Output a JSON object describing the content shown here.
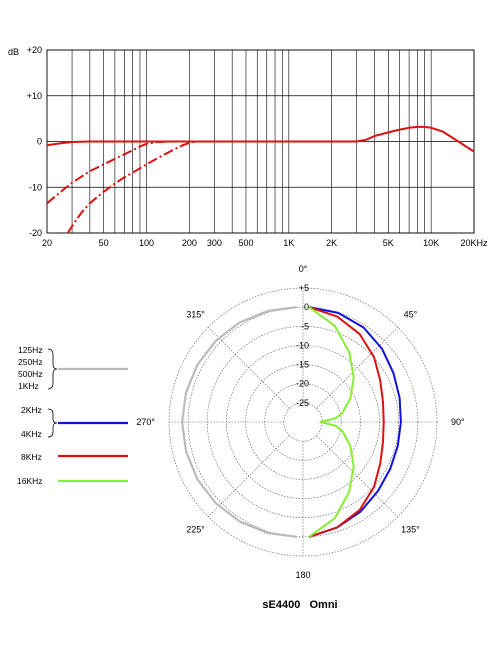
{
  "chart_data": [
    {
      "type": "line",
      "title": "",
      "xlabel": "",
      "ylabel": "dB",
      "xscale": "log",
      "xlim": [
        20,
        20000
      ],
      "ylim": [
        -20,
        20
      ],
      "grid": true,
      "x_tick_labels": [
        "20",
        "50",
        "100",
        "200",
        "300",
        "500",
        "1K",
        "2K",
        "5K",
        "10K",
        "20KHz"
      ],
      "x_tick_values": [
        20,
        50,
        100,
        200,
        300,
        500,
        1000,
        2000,
        5000,
        10000,
        20000
      ],
      "y_tick_labels": [
        "+20",
        "+10",
        "0",
        "-10",
        "-20"
      ],
      "y_tick_values": [
        20,
        10,
        0,
        -10,
        -20
      ],
      "series": [
        {
          "style": "solid",
          "color": "#dd1111",
          "x": [
            20,
            25,
            30,
            40,
            60,
            100,
            200,
            500,
            1000,
            2000,
            3000,
            3500,
            4000,
            5000,
            6000,
            7000,
            8000,
            9000,
            10000,
            12000,
            15000,
            20000
          ],
          "y": [
            -0.8,
            -0.4,
            -0.1,
            0,
            0,
            0,
            0,
            0,
            0,
            0,
            0,
            0.4,
            1.2,
            2.0,
            2.6,
            3.0,
            3.2,
            3.2,
            3.0,
            2.2,
            0.3,
            -2.2
          ]
        },
        {
          "style": "dashed",
          "color": "#dd1111",
          "x": [
            20,
            25,
            30,
            40,
            50,
            60,
            70,
            80,
            90,
            100,
            120,
            150
          ],
          "y": [
            -13.5,
            -11,
            -9,
            -6.5,
            -5,
            -3.8,
            -2.8,
            -1.9,
            -1.1,
            -0.5,
            -0.1,
            0
          ]
        },
        {
          "style": "dashed",
          "color": "#dd1111",
          "x": [
            28,
            30,
            35,
            40,
            50,
            60,
            70,
            80,
            100,
            120,
            150,
            180,
            200,
            220
          ],
          "y": [
            -20,
            -18.5,
            -15.5,
            -13.5,
            -11,
            -9.2,
            -7.8,
            -6.8,
            -5,
            -3.6,
            -2,
            -0.8,
            -0.3,
            0
          ]
        }
      ]
    },
    {
      "type": "polar",
      "title": "sE4400   Omni",
      "angle_labels": [
        {
          "deg": 0,
          "text": "0°"
        },
        {
          "deg": 45,
          "text": "45°"
        },
        {
          "deg": 90,
          "text": "90°"
        },
        {
          "deg": 135,
          "text": "135°"
        },
        {
          "deg": 180,
          "text": "180"
        },
        {
          "deg": 225,
          "text": "225°"
        },
        {
          "deg": 270,
          "text": "270°"
        },
        {
          "deg": 315,
          "text": "315°"
        }
      ],
      "radial_tick_labels": [
        "+5",
        "0",
        "-5",
        "-10",
        "-15",
        "-20",
        "-25"
      ],
      "radial_tick_values": [
        5,
        0,
        -5,
        -10,
        -15,
        -20,
        -25
      ],
      "rlim": [
        -30,
        5
      ],
      "legend": [
        {
          "labels": [
            "125Hz",
            "250Hz",
            "500Hz",
            "1KHz"
          ],
          "color": "#bbbbbb"
        },
        {
          "labels": [
            "2KHz",
            "4KHz"
          ],
          "color": "#1111dd"
        },
        {
          "labels": [
            "8KHz"
          ],
          "color": "#dd1111"
        },
        {
          "labels": [
            "16KHz"
          ],
          "color": "#88ee33"
        }
      ],
      "series": [
        {
          "name": "125Hz 250Hz 500Hz 1KHz",
          "color": "#bbbbbb",
          "side": "left",
          "angles": [
            0,
            15,
            30,
            45,
            60,
            75,
            90,
            105,
            120,
            135,
            150,
            165,
            180
          ],
          "levels": [
            0,
            0,
            0,
            0,
            0,
            0,
            0,
            0,
            0,
            0,
            0,
            0,
            0
          ]
        },
        {
          "name": "2KHz 4KHz",
          "color": "#1111dd",
          "side": "right",
          "angles": [
            0,
            15,
            30,
            45,
            60,
            75,
            90,
            105,
            120,
            135,
            150,
            165,
            180
          ],
          "levels": [
            0,
            -0.5,
            -1.5,
            -3,
            -4.5,
            -5.5,
            -6,
            -6,
            -5.5,
            -4.5,
            -3,
            -1.5,
            0
          ]
        },
        {
          "name": "8KHz",
          "color": "#dd1111",
          "side": "right",
          "angles": [
            0,
            15,
            30,
            45,
            60,
            75,
            90,
            105,
            120,
            135,
            150,
            165,
            180
          ],
          "levels": [
            0,
            -1.5,
            -3.5,
            -6,
            -8.5,
            -10,
            -10.5,
            -10,
            -8.5,
            -6,
            -3.5,
            -1.5,
            0
          ]
        },
        {
          "name": "16KHz",
          "color": "#88ee33",
          "side": "right",
          "angles": [
            0,
            15,
            30,
            45,
            60,
            75,
            82,
            90,
            98,
            105,
            120,
            135,
            150,
            165,
            180
          ],
          "levels": [
            0,
            -4,
            -9,
            -13.5,
            -17.5,
            -21,
            -23,
            -27,
            -23,
            -21,
            -17.5,
            -13.5,
            -9,
            -4,
            0
          ]
        }
      ]
    }
  ]
}
